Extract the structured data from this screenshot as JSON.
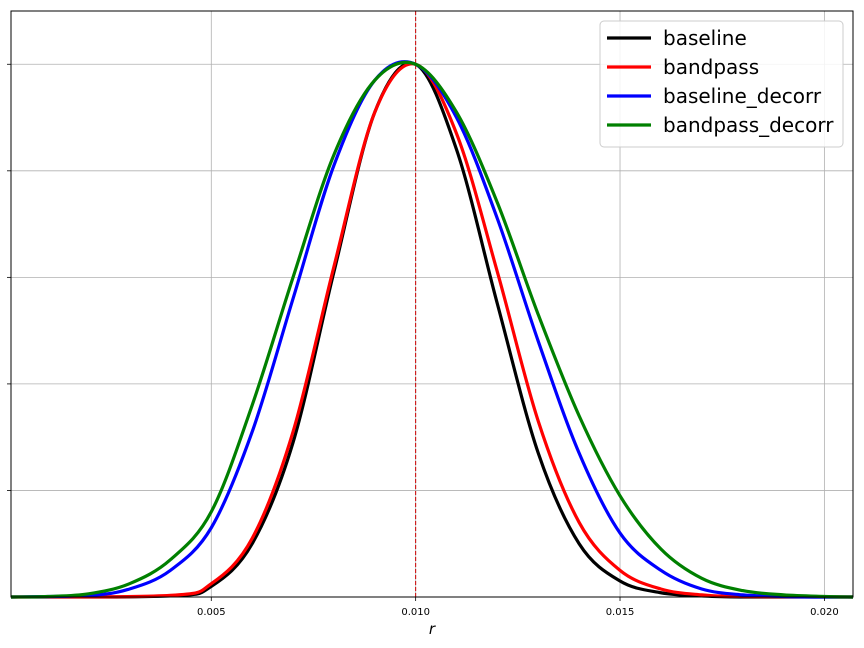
{
  "chart_data": {
    "type": "line",
    "title": "",
    "xlabel": "r",
    "ylabel": "",
    "xlim": [
      0.0001,
      0.0207
    ],
    "ylim": [
      0,
      1.1
    ],
    "grid": true,
    "legend_position": "top-right",
    "x_ticks": [
      0.005,
      0.01,
      0.015,
      0.02
    ],
    "x_tick_labels": [
      "0.005",
      "0.010",
      "0.015",
      "0.020"
    ],
    "y_ticks": [
      0.2,
      0.4,
      0.6,
      0.8,
      1.0
    ],
    "y_tick_labels": [
      "",
      "",
      "",
      "",
      ""
    ],
    "reference_line": {
      "x": 0.01,
      "color": "#cc0000",
      "style": "dashed"
    },
    "series": [
      {
        "name": "baseline",
        "color": "#000000",
        "x": [
          0.004,
          0.005,
          0.006,
          0.007,
          0.008,
          0.009,
          0.01,
          0.011,
          0.012,
          0.013,
          0.014,
          0.015,
          0.016,
          0.017,
          0.018
        ],
        "y": [
          0.002,
          0.02,
          0.1,
          0.29,
          0.61,
          0.91,
          1.0,
          0.84,
          0.55,
          0.27,
          0.1,
          0.03,
          0.008,
          0.002,
          0.0
        ]
      },
      {
        "name": "bandpass",
        "color": "#ff0000",
        "x": [
          0.004,
          0.005,
          0.006,
          0.007,
          0.008,
          0.009,
          0.01,
          0.011,
          0.012,
          0.013,
          0.014,
          0.015,
          0.016,
          0.017,
          0.018
        ],
        "y": [
          0.003,
          0.025,
          0.11,
          0.31,
          0.62,
          0.91,
          1.0,
          0.87,
          0.61,
          0.33,
          0.14,
          0.05,
          0.015,
          0.004,
          0.001
        ]
      },
      {
        "name": "baseline_decorr",
        "color": "#0000ff",
        "x": [
          0.002,
          0.003,
          0.004,
          0.005,
          0.006,
          0.007,
          0.008,
          0.009,
          0.01,
          0.011,
          0.012,
          0.013,
          0.014,
          0.015,
          0.016,
          0.017,
          0.018,
          0.019,
          0.02
        ],
        "y": [
          0.003,
          0.015,
          0.05,
          0.13,
          0.31,
          0.56,
          0.81,
          0.97,
          1.0,
          0.9,
          0.71,
          0.48,
          0.27,
          0.12,
          0.05,
          0.015,
          0.004,
          0.001,
          0.0
        ]
      },
      {
        "name": "bandpass_decorr",
        "color": "#008000",
        "x": [
          0.001,
          0.002,
          0.003,
          0.004,
          0.005,
          0.006,
          0.007,
          0.008,
          0.009,
          0.01,
          0.011,
          0.012,
          0.013,
          0.014,
          0.015,
          0.016,
          0.017,
          0.018,
          0.019,
          0.02
        ],
        "y": [
          0.001,
          0.006,
          0.025,
          0.07,
          0.16,
          0.36,
          0.6,
          0.83,
          0.97,
          1.0,
          0.91,
          0.74,
          0.53,
          0.34,
          0.19,
          0.09,
          0.035,
          0.012,
          0.004,
          0.001
        ]
      }
    ]
  }
}
